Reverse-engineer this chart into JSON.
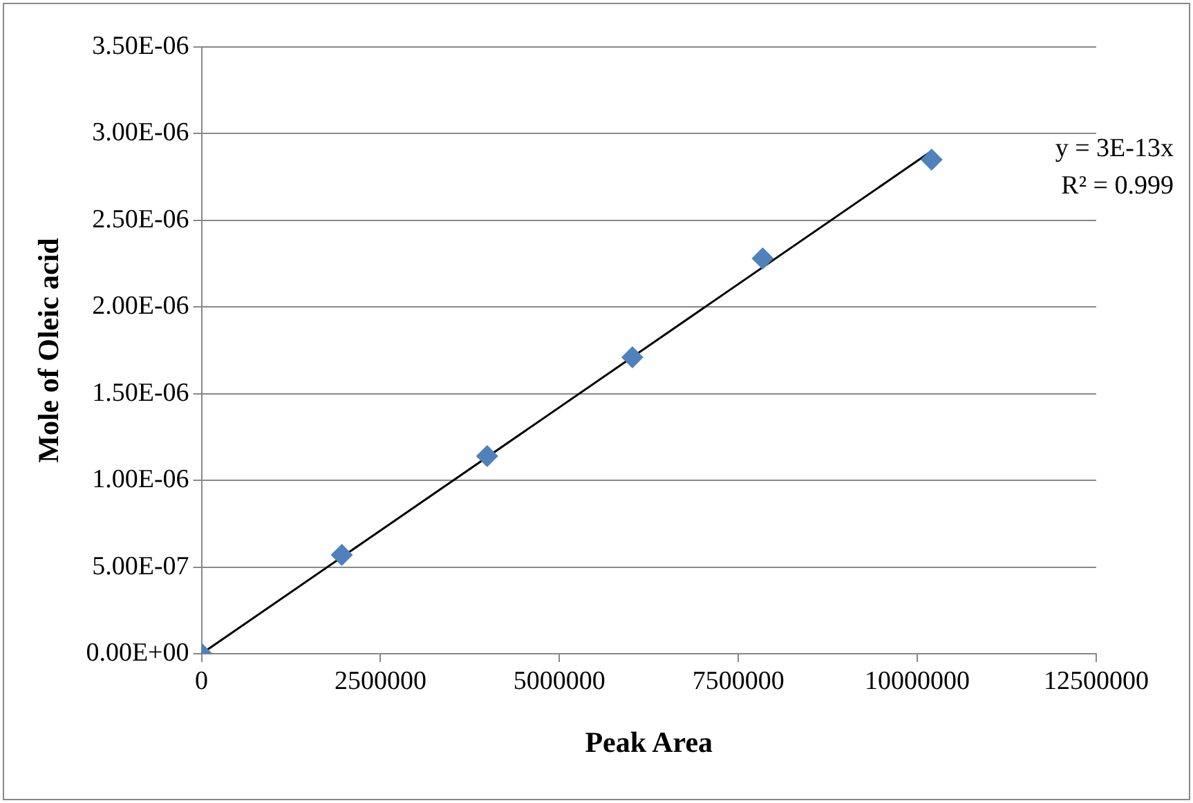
{
  "chart_data": {
    "type": "scatter",
    "xlabel": "Peak Area",
    "ylabel": "Mole of Oleic acid",
    "x": [
      0,
      1960000,
      3990000,
      6020000,
      7840000,
      10200000
    ],
    "series": [
      {
        "color": "#4f81bd",
        "marker": "diamond",
        "values": [
          0,
          5.7e-07,
          1.14e-06,
          1.71e-06,
          2.28e-06,
          2.85e-06
        ]
      },
      {
        "type": "line",
        "color": "#000000",
        "x": [
          0,
          10200000
        ],
        "values": [
          0,
          2.9e-06
        ],
        "marker": "none",
        "line_style": "solid"
      }
    ],
    "xlim": [
      0,
      12500000
    ],
    "xticks": [
      0,
      2500000,
      5000000,
      7500000,
      10000000,
      12500000
    ],
    "ylim": [
      0,
      3.5e-06
    ],
    "yticks": [
      {
        "value": 0,
        "label": "0.00E+00"
      },
      {
        "value": 5e-07,
        "label": "5.00E-07"
      },
      {
        "value": 1e-06,
        "label": "1.00E-06"
      },
      {
        "value": 1.5e-06,
        "label": "1.50E-06"
      },
      {
        "value": 2e-06,
        "label": "2.00E-06"
      },
      {
        "value": 2.5e-06,
        "label": "2.50E-06"
      },
      {
        "value": 3e-06,
        "label": "3.00E-06"
      },
      {
        "value": 3.5e-06,
        "label": "3.50E-06"
      }
    ],
    "grid": "y",
    "legend": false,
    "annotations": [
      "y = 3E-13x",
      "R² = 0.999"
    ]
  }
}
